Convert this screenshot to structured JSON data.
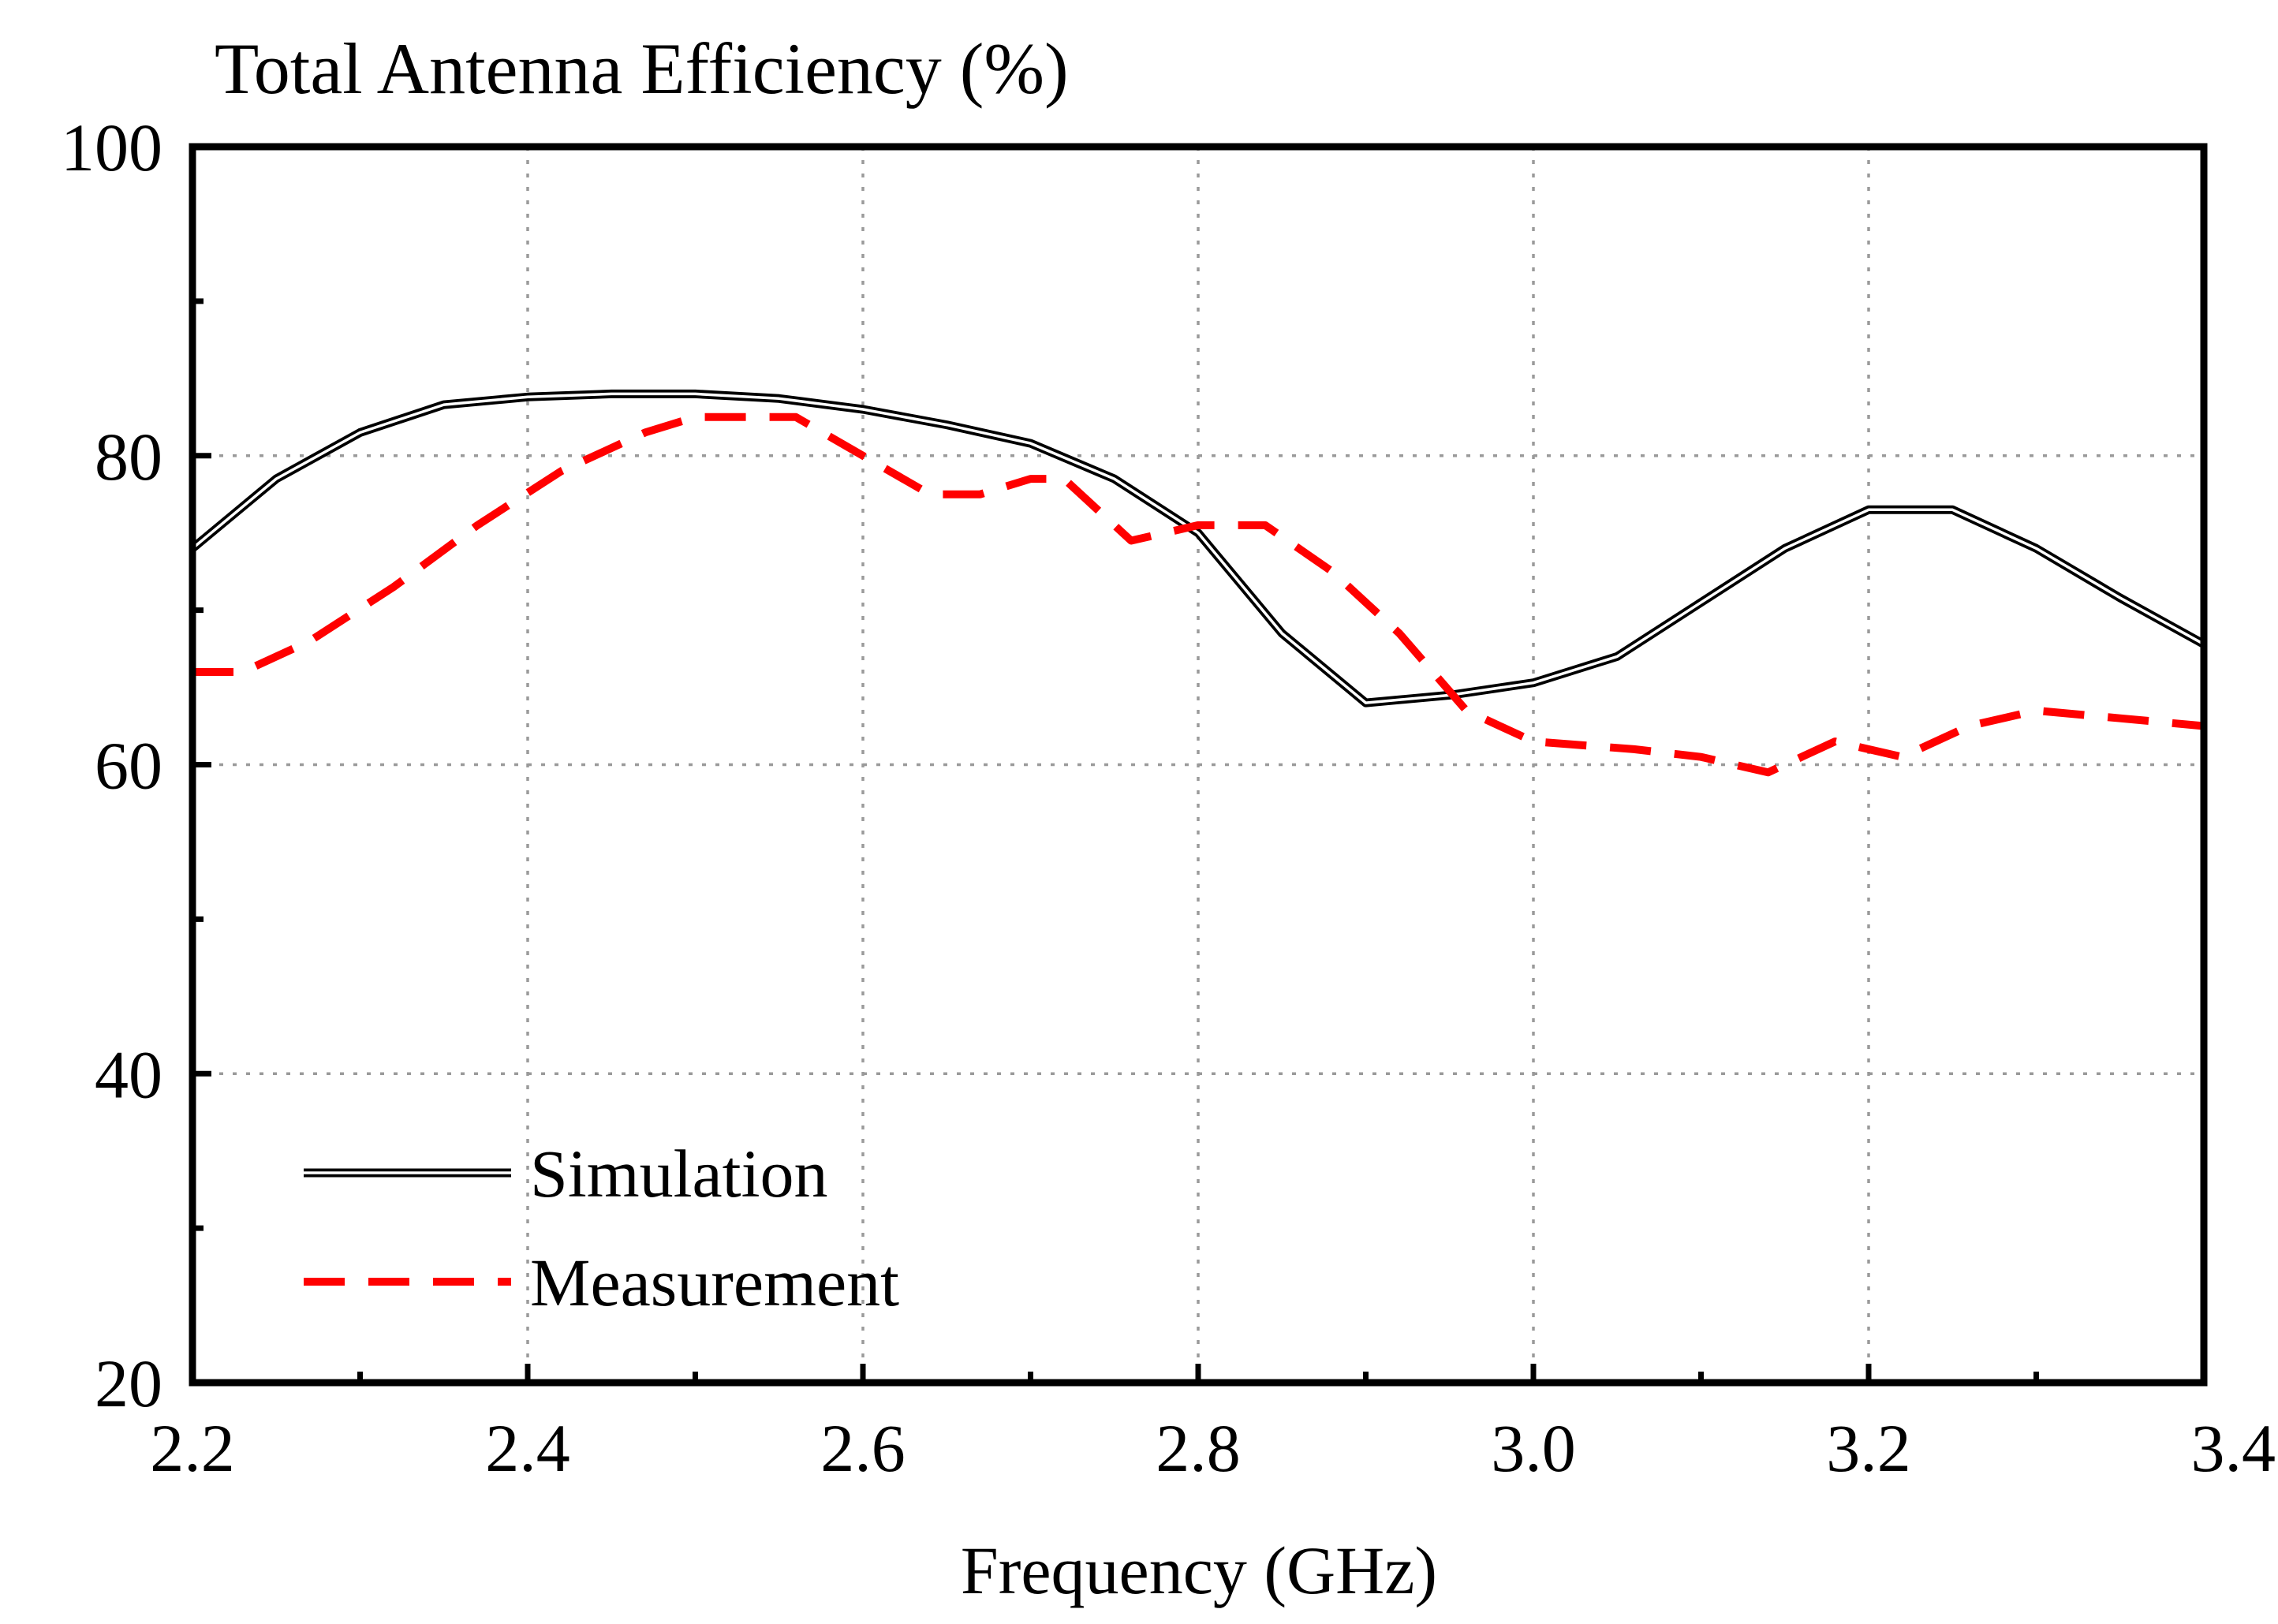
{
  "chart_data": {
    "type": "line",
    "title": "Total Antenna Efficiency (%)",
    "xlabel": "Frequency (GHz)",
    "ylabel": "Total Antenna Efficiency (%)",
    "xlim": [
      2.2,
      3.4
    ],
    "ylim": [
      20,
      100
    ],
    "xticks": [
      2.2,
      2.4,
      2.6,
      2.8,
      3.0,
      3.2,
      3.4
    ],
    "xtick_labels": [
      "2.2",
      "2.4",
      "2.6",
      "2.8",
      "3.0",
      "3.2",
      "3.4"
    ],
    "xminor": [
      2.3,
      2.5,
      2.7,
      2.9,
      3.1,
      3.3
    ],
    "yticks": [
      20,
      40,
      60,
      80,
      100
    ],
    "ytick_labels": [
      "20",
      "40",
      "60",
      "80",
      "100"
    ],
    "yminor": [
      30,
      50,
      70,
      90
    ],
    "grid": true,
    "legend_position": "bottom-left",
    "series": [
      {
        "name": "Simulation",
        "color": "#000000",
        "style": "double-solid",
        "x": [
          2.2,
          2.25,
          2.3,
          2.35,
          2.4,
          2.45,
          2.5,
          2.55,
          2.6,
          2.65,
          2.7,
          2.75,
          2.8,
          2.85,
          2.9,
          2.95,
          3.0,
          3.05,
          3.1,
          3.15,
          3.2,
          3.25,
          3.3,
          3.35,
          3.4
        ],
        "values": [
          74,
          78.5,
          81.5,
          83.3,
          83.8,
          84,
          84,
          83.7,
          83,
          82,
          80.8,
          78.5,
          75,
          68.5,
          64,
          64.5,
          65.3,
          67,
          70.5,
          74,
          76.5,
          76.5,
          74,
          70.8,
          67.8
        ]
      },
      {
        "name": "Measurement",
        "color": "#ff0000",
        "style": "dashed",
        "x": [
          2.2,
          2.23,
          2.27,
          2.32,
          2.37,
          2.42,
          2.47,
          2.5,
          2.56,
          2.6,
          2.64,
          2.67,
          2.7,
          2.72,
          2.76,
          2.8,
          2.84,
          2.88,
          2.92,
          2.96,
          3.0,
          3.06,
          3.1,
          3.14,
          3.18,
          3.22,
          3.26,
          3.3,
          3.35,
          3.4
        ],
        "values": [
          66,
          66,
          68,
          71.5,
          75.5,
          79,
          81.5,
          82.5,
          82.5,
          80,
          77.5,
          77.5,
          78.5,
          78.5,
          74.5,
          75.5,
          75.5,
          72.5,
          68.5,
          63.5,
          61.5,
          61,
          60.5,
          59.5,
          61.5,
          60.5,
          62.5,
          63.5,
          63,
          62.5
        ]
      }
    ]
  }
}
